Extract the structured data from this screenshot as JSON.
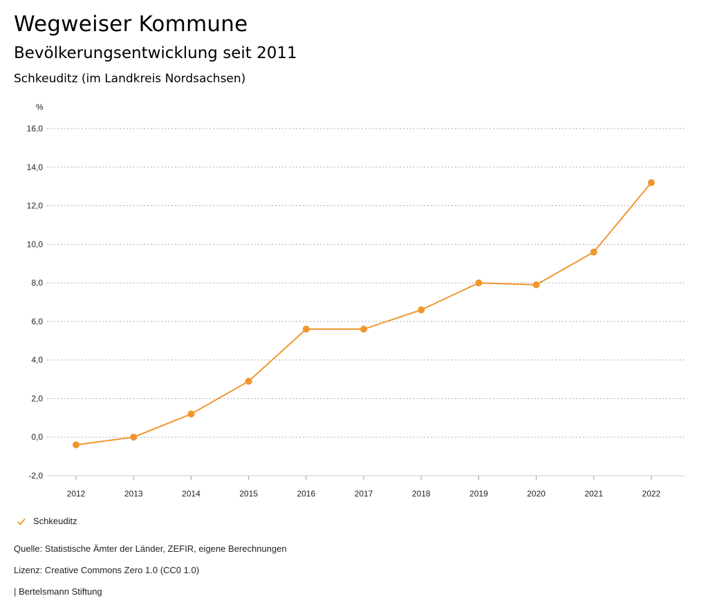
{
  "header": {
    "title": "Wegweiser Kommune",
    "subtitle": "Bevölkerungsentwicklung seit 2011",
    "region": "Schkeuditz (im Landkreis Nordsachsen)"
  },
  "legend": {
    "label": "Schkeuditz"
  },
  "footer": {
    "source": "Quelle: Statistische Ämter der Länder, ZEFIR, eigene Berechnungen",
    "license": "Lizenz: Creative Commons Zero 1.0 (CC0 1.0)",
    "publisher": "| Bertelsmann Stiftung"
  },
  "colors": {
    "series": "#f0962d",
    "grid": "#aaaaaa"
  },
  "chart_data": {
    "type": "line",
    "title": "Bevölkerungsentwicklung seit 2011",
    "ylabel": "%",
    "xlabel": "",
    "ylim": [
      -2.0,
      16.0
    ],
    "yticks": [
      "16,0",
      "14,0",
      "12,0",
      "10,0",
      "8,0",
      "6,0",
      "4,0",
      "2,0",
      "0,0",
      "-2,0"
    ],
    "ytick_values": [
      16,
      14,
      12,
      10,
      8,
      6,
      4,
      2,
      0,
      -2
    ],
    "categories": [
      "2012",
      "2013",
      "2014",
      "2015",
      "2016",
      "2017",
      "2018",
      "2019",
      "2020",
      "2021",
      "2022"
    ],
    "series": [
      {
        "name": "Schkeuditz",
        "values": [
          -0.4,
          0.0,
          1.2,
          2.9,
          5.6,
          5.6,
          6.6,
          8.0,
          7.9,
          9.6,
          13.2
        ]
      }
    ],
    "grid": true,
    "legend_position": "bottom-left"
  }
}
